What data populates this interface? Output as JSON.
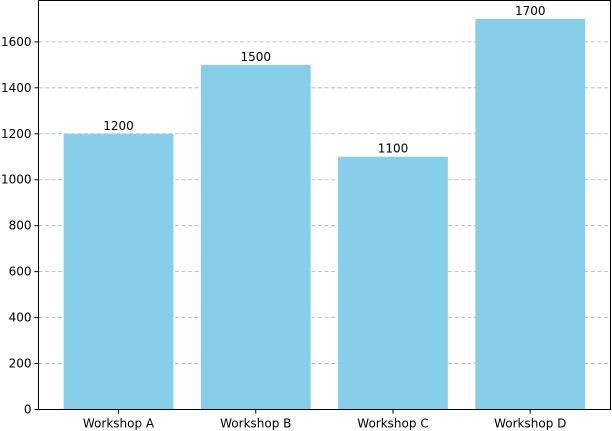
{
  "chart_data": {
    "type": "bar",
    "title": "",
    "xlabel": "",
    "ylabel": "",
    "categories": [
      "Workshop A",
      "Workshop B",
      "Workshop C",
      "Workshop D"
    ],
    "values": [
      1200,
      1500,
      1100,
      1700
    ],
    "data_labels": [
      "1200",
      "1500",
      "1100",
      "1700"
    ],
    "ylim": [
      0,
      1780
    ],
    "yticks": [
      0,
      200,
      400,
      600,
      800,
      1000,
      1200,
      1400,
      1600
    ],
    "ytick_labels": [
      "0",
      "200",
      "400",
      "600",
      "800",
      "1000",
      "1200",
      "1400",
      "1600"
    ],
    "grid": "horizontal-dashed",
    "legend": "none",
    "colors": {
      "bar": "#87ceeb",
      "grid": "#b0b0b0",
      "axis": "#000000"
    }
  }
}
